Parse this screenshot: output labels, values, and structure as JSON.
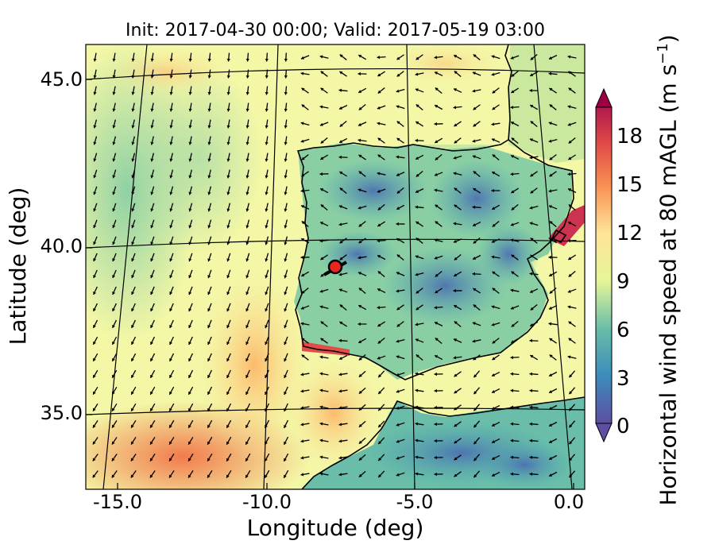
{
  "title": "Init: 2017-04-30 00:00; Valid: 2017-05-19 03:00",
  "axes": {
    "xlabel": "Longitude (deg)",
    "ylabel": "Latitude (deg)",
    "xticks": [
      "-15.0",
      "-10.0",
      "-5.0",
      "0.0"
    ],
    "yticks": [
      "45.0",
      "40.0",
      "35.0"
    ],
    "xlim": [
      -15.8,
      0.2
    ],
    "ylim": [
      32.7,
      46.0
    ]
  },
  "colorbar": {
    "label_main": "Horizontal wind speed at 80 mAGL (m s",
    "label_sup": "−1",
    "label_end": ")",
    "ticks": [
      "0",
      "3",
      "6",
      "9",
      "12",
      "15",
      "18"
    ],
    "range": [
      0,
      20
    ],
    "extend": "both",
    "colors": [
      "#5e4fa2",
      "#4a6db1",
      "#3d8bbb",
      "#4fa7b2",
      "#69bda9",
      "#8acfa4",
      "#abdda4",
      "#cbe99e",
      "#e6f598",
      "#fbf8b0",
      "#fee59a",
      "#fdcf7f",
      "#fdb366",
      "#f99154",
      "#f26d43",
      "#e24d48",
      "#cc3350",
      "#b01a4a",
      "#9e0142"
    ]
  },
  "marker": {
    "lon": -7.7,
    "lat": 39.3,
    "color": "#e8261f"
  },
  "map": {
    "meridians": [
      -15,
      -10,
      -5,
      0
    ],
    "parallels": [
      35,
      40,
      45
    ],
    "coastline": "Iberian Peninsula, Balearic Islands, southern France, northern Morocco and Algeria"
  }
}
